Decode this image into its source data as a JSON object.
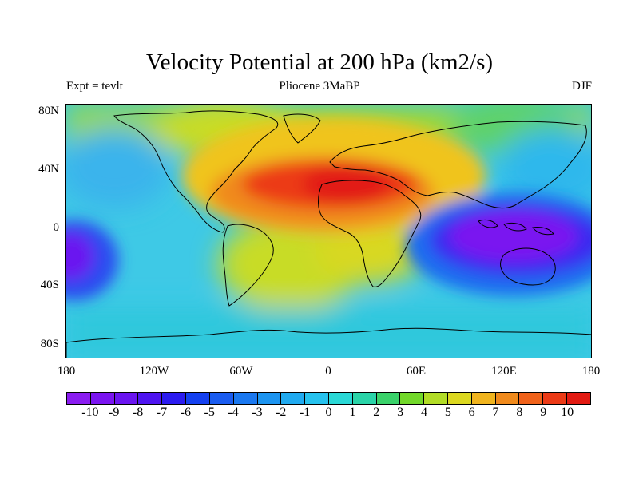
{
  "figure": {
    "title": "Velocity Potential at 200 hPa (km2/s)",
    "left_string": "Expt = tevlt",
    "center_string": "Pliocene   3MaBP",
    "right_string": "DJF"
  },
  "map": {
    "lat_labels": [
      "80N",
      "40N",
      "0",
      "40S",
      "80S"
    ],
    "lon_labels": [
      "180",
      "120W",
      "60W",
      "0",
      "60E",
      "120E",
      "180"
    ],
    "max_center_lonlat": [
      5,
      25
    ],
    "min_center_lonlat": [
      140,
      -5
    ],
    "secondary_min_lonlat": [
      -175,
      -15
    ]
  },
  "colorbar": {
    "labels": [
      "-10",
      "-9",
      "-8",
      "-7",
      "-6",
      "-5",
      "-4",
      "-3",
      "-2",
      "-1",
      "0",
      "1",
      "2",
      "3",
      "4",
      "5",
      "6",
      "7",
      "8",
      "9",
      "10"
    ],
    "colors": [
      "#8a1cf0",
      "#7a14f0",
      "#6a14f0",
      "#4e14f0",
      "#2b1bf0",
      "#1440f0",
      "#1a5cf0",
      "#1a78f0",
      "#1c94f0",
      "#20aaf0",
      "#26c2ee",
      "#2ad8d6",
      "#2ad4a8",
      "#3ad26a",
      "#72d82a",
      "#b2dc26",
      "#dcd820",
      "#f0b41e",
      "#f08a1c",
      "#f0621a",
      "#ec3a16",
      "#e21a12"
    ]
  },
  "chart_data": {
    "type": "heatmap",
    "title": "Velocity Potential at 200 hPa (km2/s)",
    "variable": "velocity potential",
    "units": "km2/s",
    "levels": [
      -10,
      -9,
      -8,
      -7,
      -6,
      -5,
      -4,
      -3,
      -2,
      -1,
      0,
      1,
      2,
      3,
      4,
      5,
      6,
      7,
      8,
      9,
      10
    ],
    "x": [
      "180",
      "120W",
      "60W",
      "0",
      "60E",
      "120E",
      "180"
    ],
    "y": [
      "80N",
      "40N",
      "0",
      "40S",
      "80S"
    ],
    "value_range": [
      -10,
      10
    ]
  }
}
